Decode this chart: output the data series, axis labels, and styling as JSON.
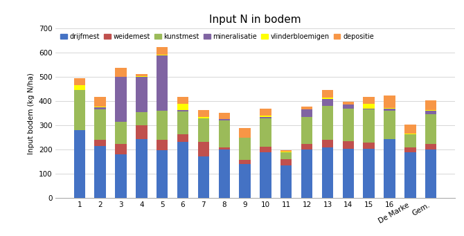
{
  "title": "Input N in bodem",
  "ylabel": "Input bodem (kg N/ha)",
  "categories": [
    "1",
    "2",
    "3",
    "4",
    "5",
    "6",
    "7",
    "8",
    "9",
    "10",
    "11",
    "12",
    "13",
    "14",
    "15",
    "16",
    "De Marke",
    "Gem."
  ],
  "series": {
    "drijfmest": [
      280,
      215,
      182,
      245,
      197,
      232,
      172,
      200,
      140,
      190,
      135,
      200,
      210,
      205,
      205,
      245,
      190,
      200
    ],
    "weidemest": [
      0,
      25,
      42,
      55,
      43,
      32,
      60,
      10,
      18,
      22,
      25,
      25,
      30,
      30,
      25,
      0,
      18,
      25
    ],
    "kunstmest": [
      165,
      125,
      90,
      55,
      120,
      95,
      97,
      110,
      90,
      118,
      30,
      110,
      140,
      135,
      135,
      115,
      55,
      120
    ],
    "mineralisatie": [
      0,
      10,
      185,
      145,
      230,
      5,
      0,
      5,
      0,
      5,
      0,
      30,
      30,
      15,
      5,
      10,
      0,
      15
    ],
    "vlinderbloemigen": [
      20,
      2,
      2,
      2,
      2,
      25,
      5,
      2,
      2,
      5,
      2,
      2,
      5,
      2,
      20,
      2,
      2,
      2
    ],
    "depositie": [
      30,
      40,
      35,
      10,
      30,
      28,
      30,
      25,
      38,
      28,
      5,
      10,
      30,
      10,
      28,
      50,
      38,
      40
    ]
  },
  "colors": {
    "drijfmest": "#4472C4",
    "weidemest": "#C0504D",
    "kunstmest": "#9BBB59",
    "mineralisatie": "#8064A2",
    "vlinderbloemigen": "#FFFF00",
    "depositie": "#F79646"
  },
  "ylim": [
    0,
    700
  ],
  "yticks": [
    0,
    100,
    200,
    300,
    400,
    500,
    600,
    700
  ],
  "legend_labels": [
    "drijfmest",
    "weidemest",
    "kunstmest",
    "mineralisatie",
    "vlinderbloemigen",
    "depositie"
  ],
  "figsize": [
    6.7,
    3.41
  ],
  "dpi": 100
}
